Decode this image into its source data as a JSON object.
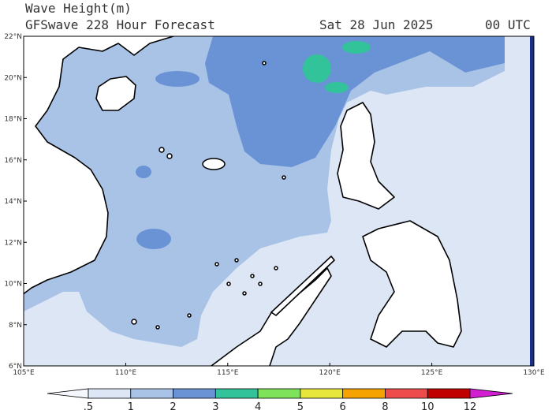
{
  "header": {
    "title": "Wave Height(m)",
    "subtitle": "GFSwave 228 Hour Forecast",
    "date": "Sat 28 Jun 2025",
    "time": "00 UTC"
  },
  "map": {
    "lat_labels": [
      "22°N",
      "20°N",
      "18°N",
      "16°N",
      "14°N",
      "12°N",
      "10°N",
      "8°N",
      "6°N"
    ],
    "lon_labels": [
      "105°E",
      "110°E",
      "115°E",
      "120°E",
      "125°E",
      "130°E"
    ]
  },
  "colorbar": {
    "labels": [
      ".5",
      "1",
      "2",
      "3",
      "4",
      "5",
      "6",
      "8",
      "10",
      "12"
    ],
    "colors": [
      "#f4f7fc",
      "#dce6f4",
      "#a9c3e7",
      "#6a93d5",
      "#33c39a",
      "#7ee35a",
      "#e6e63c",
      "#f5a300",
      "#ee4c4c",
      "#c00000",
      "#d21fd2"
    ]
  }
}
